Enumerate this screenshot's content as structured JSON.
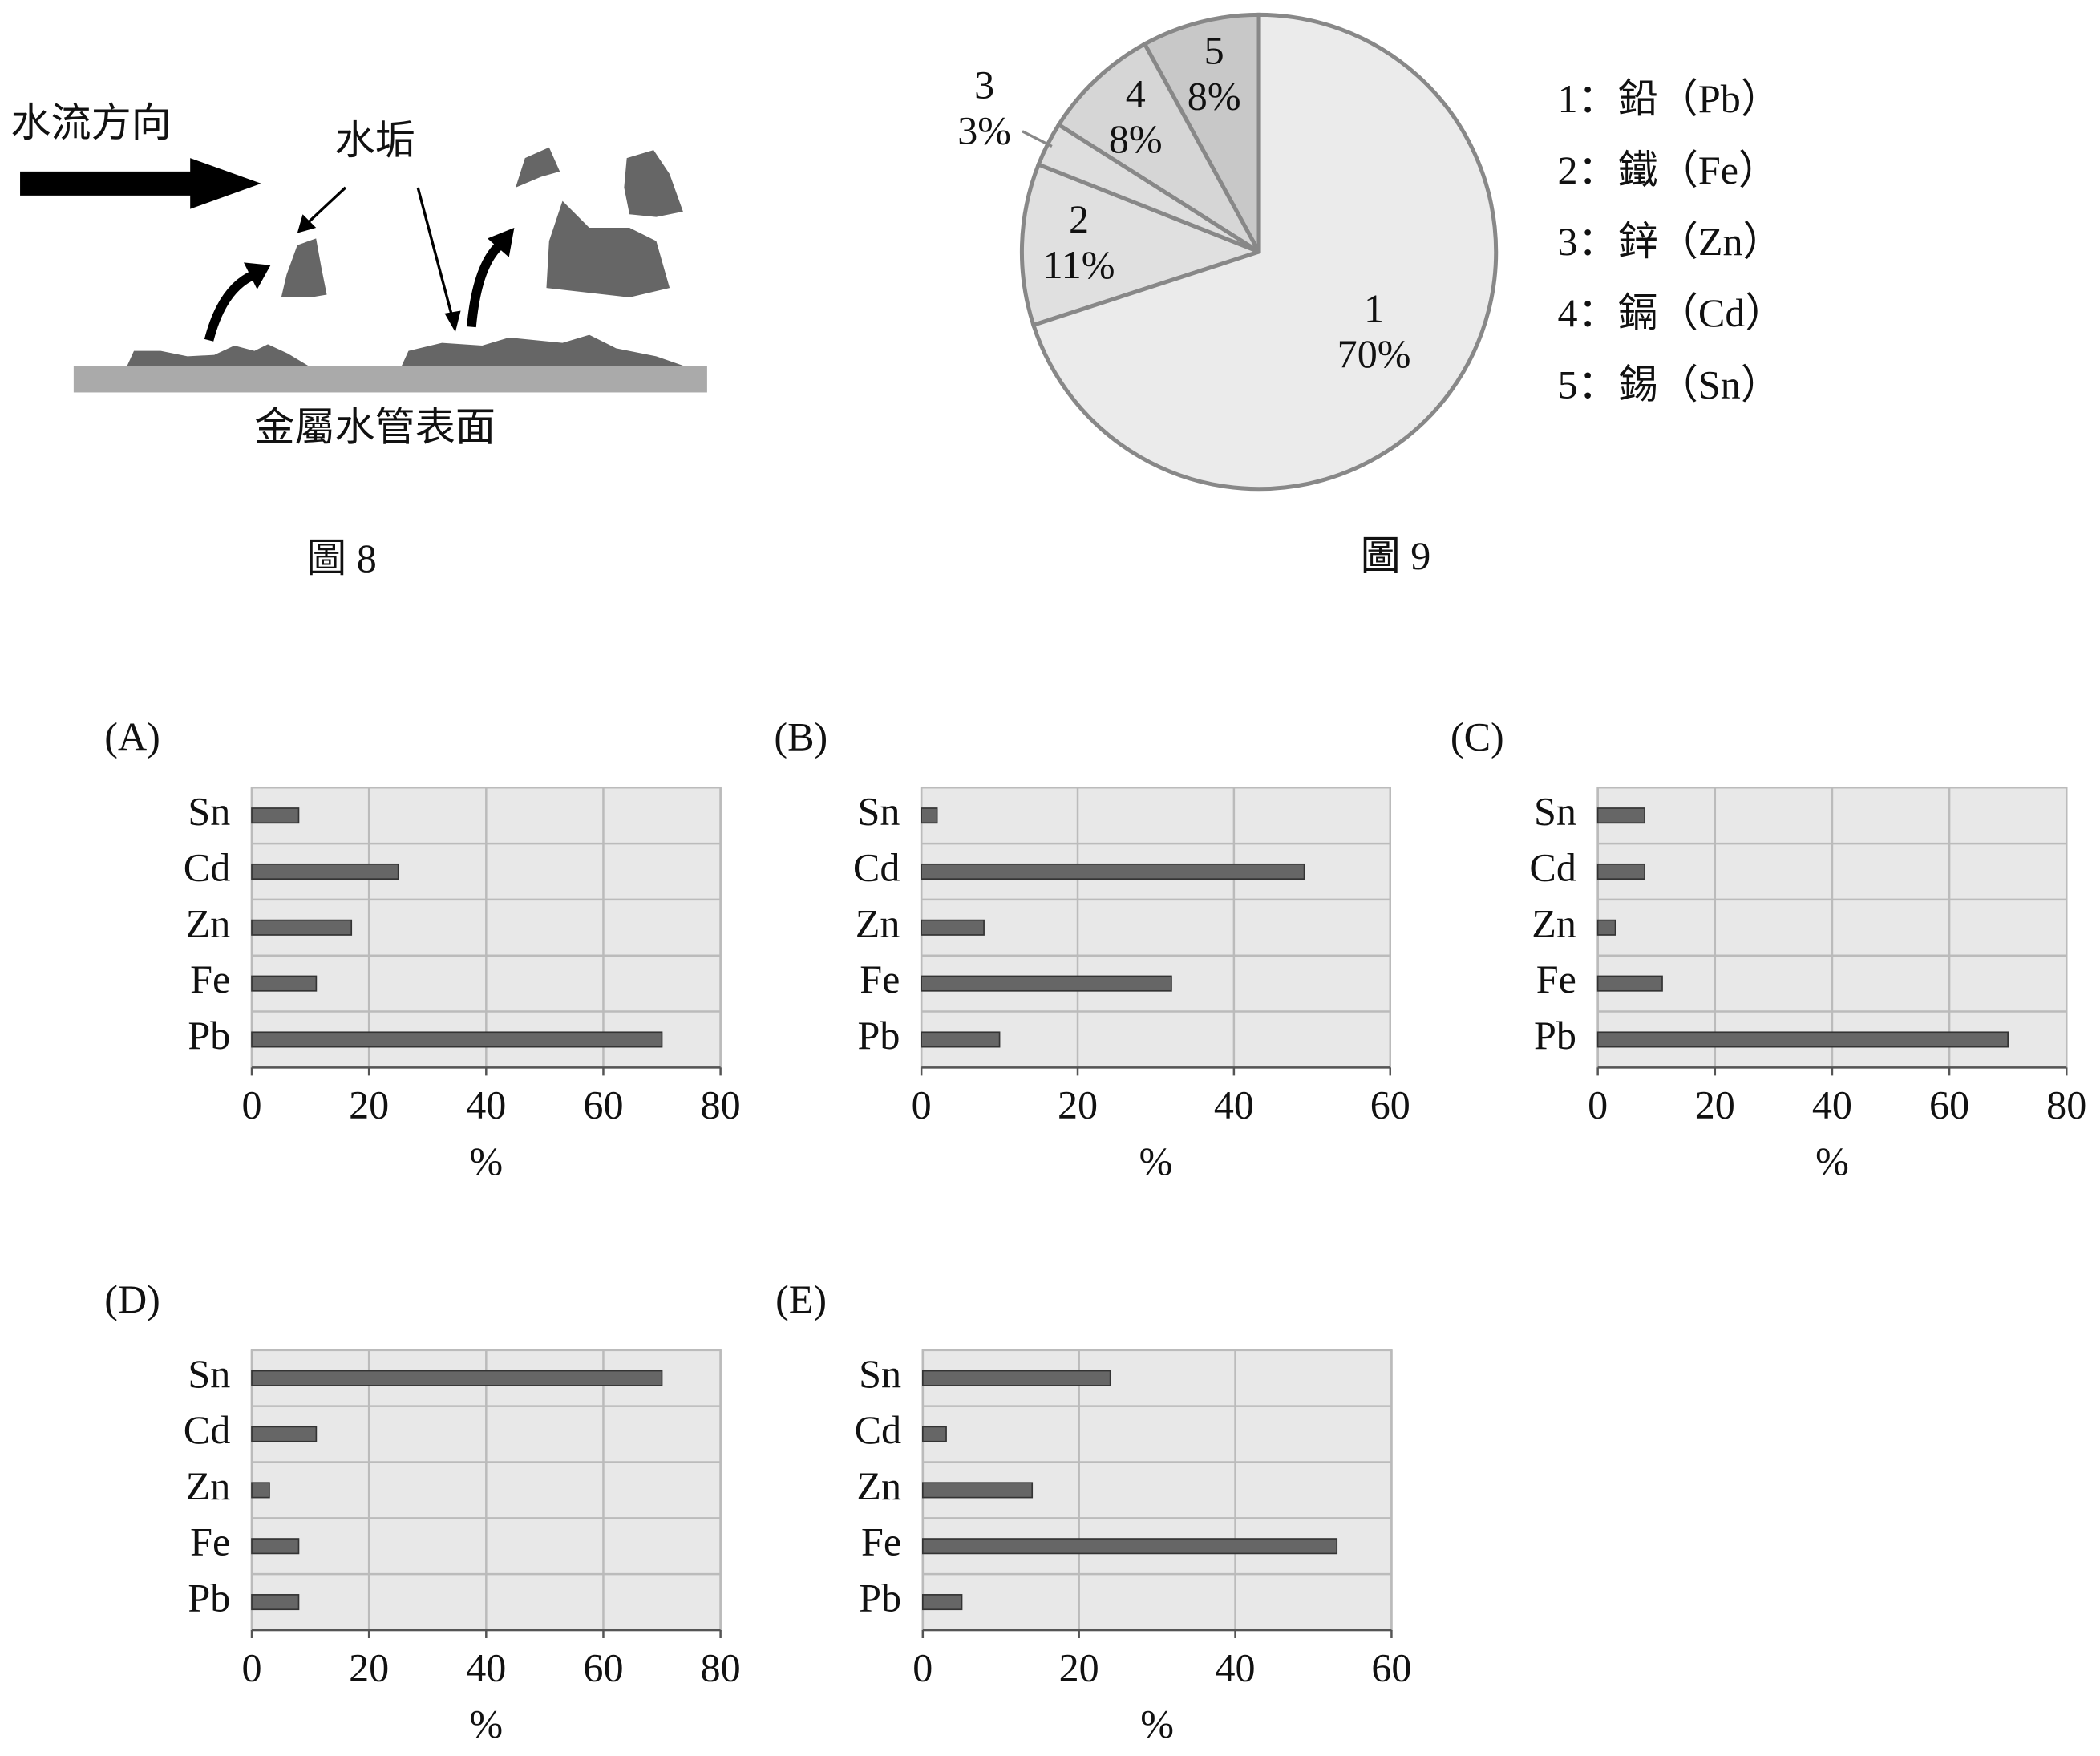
{
  "figure8": {
    "flow_label": "水流方向",
    "scale_label": "水垢",
    "surface_label": "金屬水管表面",
    "caption": "圖 8"
  },
  "chart_data": [
    {
      "type": "pie",
      "caption": "圖 9",
      "categories": [
        "1",
        "2",
        "3",
        "4",
        "5"
      ],
      "values": [
        70,
        11,
        3,
        8,
        8
      ],
      "value_labels": [
        "70%",
        "11%",
        "3%",
        "8%",
        "8%"
      ],
      "colors": [
        "#ebebeb",
        "#e0e0e0",
        "#dedede",
        "#d6d6d6",
        "#c8c8c8"
      ],
      "legend": [
        "1：鉛（Pb）",
        "2：鐵（Fe）",
        "3：鋅（Zn）",
        "4：鎘（Cd）",
        "5：錫（Sn）"
      ]
    },
    {
      "type": "bar",
      "orientation": "horizontal",
      "title": "(A)",
      "categories": [
        "Pb",
        "Fe",
        "Zn",
        "Cd",
        "Sn"
      ],
      "values": [
        70,
        11,
        17,
        25,
        8
      ],
      "xlim": [
        0,
        80
      ],
      "xticks": [
        0,
        20,
        40,
        60,
        80
      ],
      "xlabel": "%",
      "color": "#666666",
      "grid": true
    },
    {
      "type": "bar",
      "orientation": "horizontal",
      "title": "(B)",
      "categories": [
        "Pb",
        "Fe",
        "Zn",
        "Cd",
        "Sn"
      ],
      "values": [
        10,
        32,
        8,
        49,
        2
      ],
      "xlim": [
        0,
        60
      ],
      "xticks": [
        0,
        20,
        40,
        60
      ],
      "xlabel": "%",
      "color": "#666666",
      "grid": true
    },
    {
      "type": "bar",
      "orientation": "horizontal",
      "title": "(C)",
      "categories": [
        "Pb",
        "Fe",
        "Zn",
        "Cd",
        "Sn"
      ],
      "values": [
        70,
        11,
        3,
        8,
        8
      ],
      "xlim": [
        0,
        80
      ],
      "xticks": [
        0,
        20,
        40,
        60,
        80
      ],
      "xlabel": "%",
      "color": "#666666",
      "grid": true
    },
    {
      "type": "bar",
      "orientation": "horizontal",
      "title": "(D)",
      "categories": [
        "Pb",
        "Fe",
        "Zn",
        "Cd",
        "Sn"
      ],
      "values": [
        8,
        8,
        3,
        11,
        70
      ],
      "xlim": [
        0,
        80
      ],
      "xticks": [
        0,
        20,
        40,
        60,
        80
      ],
      "xlabel": "%",
      "color": "#666666",
      "grid": true
    },
    {
      "type": "bar",
      "orientation": "horizontal",
      "title": "(E)",
      "categories": [
        "Pb",
        "Fe",
        "Zn",
        "Cd",
        "Sn"
      ],
      "values": [
        5,
        53,
        14,
        3,
        24
      ],
      "xlim": [
        0,
        60
      ],
      "xticks": [
        0,
        20,
        40,
        60
      ],
      "xlabel": "%",
      "color": "#666666",
      "grid": true
    }
  ]
}
